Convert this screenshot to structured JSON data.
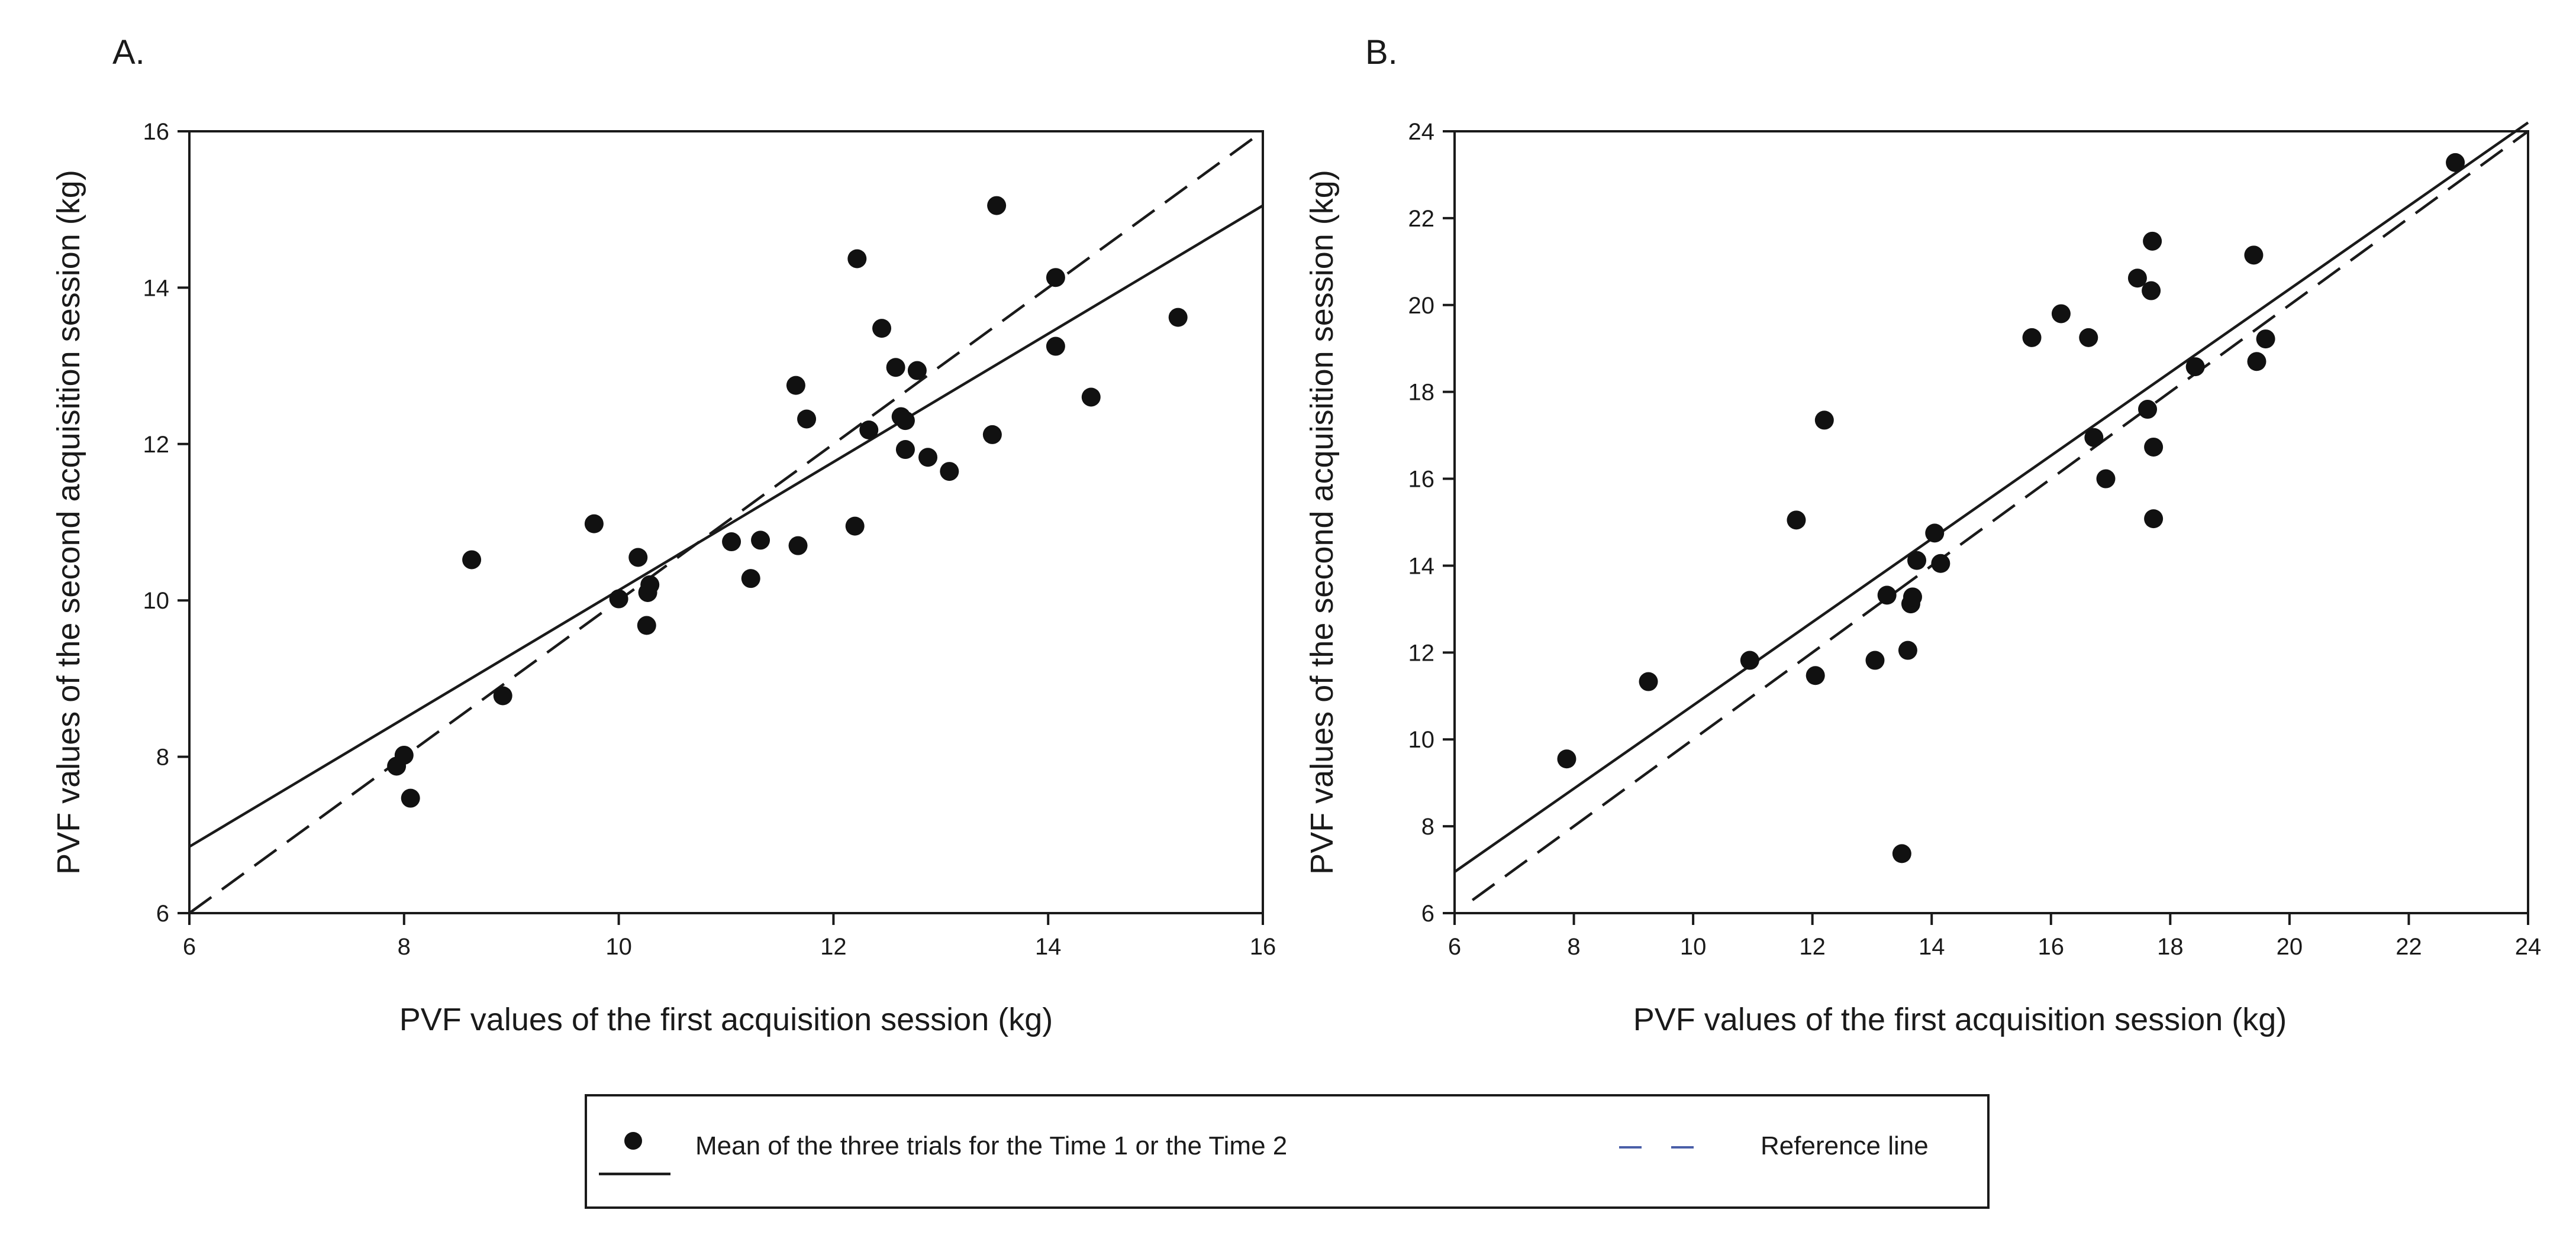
{
  "chart_data": [
    {
      "type": "scatter",
      "panel_label": "A.",
      "xlabel": "PVF values of the first acquisition session (kg)",
      "ylabel": "PVF values of the second acquisition session (kg)",
      "xlim": [
        6,
        16
      ],
      "ylim": [
        6,
        16
      ],
      "xticks": [
        "6",
        "8",
        "10",
        "12",
        "14",
        "16"
      ],
      "yticks": [
        "6",
        "8",
        "10",
        "12",
        "14",
        "16"
      ],
      "fit_line": {
        "from": [
          6,
          6.85
        ],
        "to": [
          16,
          15.05
        ]
      },
      "reference_line": {
        "from": [
          6,
          6
        ],
        "to": [
          16,
          16
        ]
      },
      "points": [
        [
          7.93,
          7.88
        ],
        [
          8.0,
          8.02
        ],
        [
          8.06,
          7.47
        ],
        [
          8.63,
          10.52
        ],
        [
          8.92,
          8.78
        ],
        [
          9.77,
          10.98
        ],
        [
          10.0,
          10.02
        ],
        [
          10.18,
          10.55
        ],
        [
          10.26,
          9.68
        ],
        [
          10.27,
          10.1
        ],
        [
          10.29,
          10.2
        ],
        [
          11.05,
          10.75
        ],
        [
          11.23,
          10.28
        ],
        [
          11.32,
          10.77
        ],
        [
          11.65,
          12.75
        ],
        [
          11.67,
          10.7
        ],
        [
          11.75,
          12.32
        ],
        [
          12.2,
          10.95
        ],
        [
          12.22,
          14.37
        ],
        [
          12.33,
          12.18
        ],
        [
          12.45,
          13.48
        ],
        [
          12.58,
          12.98
        ],
        [
          12.63,
          12.35
        ],
        [
          12.67,
          12.3
        ],
        [
          12.67,
          11.93
        ],
        [
          12.78,
          12.94
        ],
        [
          12.88,
          11.83
        ],
        [
          13.08,
          11.65
        ],
        [
          13.48,
          12.12
        ],
        [
          13.52,
          15.05
        ],
        [
          14.07,
          14.13
        ],
        [
          14.07,
          13.25
        ],
        [
          14.4,
          12.6
        ],
        [
          15.21,
          13.62
        ]
      ]
    },
    {
      "type": "scatter",
      "panel_label": "B.",
      "xlabel": "PVF values of the first acquisition session (kg)",
      "ylabel": "PVF values of the  second acquisition session (kg)",
      "xlim": [
        6,
        24
      ],
      "ylim": [
        6,
        24
      ],
      "xticks": [
        "6",
        "8",
        "10",
        "12",
        "14",
        "16",
        "18",
        "20",
        "22",
        "24"
      ],
      "yticks": [
        "6",
        "8",
        "10",
        "12",
        "14",
        "16",
        "18",
        "20",
        "22",
        "24"
      ],
      "fit_line": {
        "from": [
          6,
          6.95
        ],
        "to": [
          24,
          24.2
        ]
      },
      "reference_line": {
        "from": [
          6.3,
          6.3
        ],
        "to": [
          24,
          24
        ]
      },
      "points": [
        [
          7.88,
          9.55
        ],
        [
          9.25,
          11.33
        ],
        [
          10.95,
          11.82
        ],
        [
          11.73,
          15.05
        ],
        [
          12.05,
          11.47
        ],
        [
          12.2,
          17.35
        ],
        [
          13.05,
          11.82
        ],
        [
          13.25,
          13.32
        ],
        [
          13.5,
          7.37
        ],
        [
          13.6,
          12.05
        ],
        [
          13.65,
          13.12
        ],
        [
          13.68,
          13.28
        ],
        [
          13.75,
          14.12
        ],
        [
          14.05,
          14.75
        ],
        [
          14.15,
          14.05
        ],
        [
          15.68,
          19.25
        ],
        [
          16.17,
          19.8
        ],
        [
          16.63,
          19.25
        ],
        [
          16.72,
          16.95
        ],
        [
          16.92,
          16.0
        ],
        [
          17.45,
          20.62
        ],
        [
          17.62,
          17.6
        ],
        [
          17.68,
          20.33
        ],
        [
          17.7,
          21.47
        ],
        [
          17.72,
          16.73
        ],
        [
          17.72,
          15.08
        ],
        [
          18.42,
          18.58
        ],
        [
          19.4,
          21.15
        ],
        [
          19.45,
          18.7
        ],
        [
          19.6,
          19.22
        ],
        [
          22.78,
          23.28
        ]
      ]
    }
  ],
  "legend": {
    "point_label": "Mean of the three trials for the Time 1 or the Time 2",
    "reference_label": "Reference line"
  }
}
